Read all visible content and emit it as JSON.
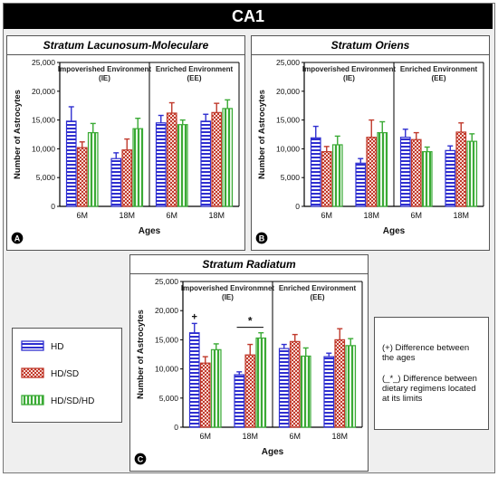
{
  "figure": {
    "title": "CA1",
    "colors": {
      "hd": "#2f2fd0",
      "hdsd": "#c0392b",
      "hdsdhd": "#3aaa35",
      "badge_bg": "#000000"
    },
    "legend": [
      {
        "key": "hd",
        "label": "HD",
        "pattern": "horizontal-stripes"
      },
      {
        "key": "hdsd",
        "label": "HD/SD",
        "pattern": "checkerboard"
      },
      {
        "key": "hdsdhd",
        "label": "HD/SD/HD",
        "pattern": "vertical-stripes"
      }
    ],
    "notes": {
      "line1_symbol": "(+)",
      "line1_text": "Difference between",
      "line2_text": "the ages",
      "line3_symbol": "(_*_)",
      "line3_text": "Difference between",
      "line4_text": "dietary regimens located",
      "line5_text": "at its limits"
    }
  },
  "chart_data": [
    {
      "type": "bar",
      "panel_label": "A",
      "title": "Stratum Lacunosum-Moleculare",
      "group_labels": [
        "Impoverished Environment (IE)",
        "Enriched Environment (EE)"
      ],
      "categories": [
        "6M",
        "18M",
        "6M",
        "18M"
      ],
      "xlabel": "Ages",
      "ylabel": "Number of Astrocytes",
      "ylim": [
        0,
        25000
      ],
      "yticks": [
        "0",
        "5,000",
        "10,000",
        "15,000",
        "20,000",
        "25,000"
      ],
      "series": [
        {
          "name": "HD",
          "values": [
            14800,
            8300,
            14500,
            14800
          ],
          "errors": [
            2500,
            1000,
            1300,
            1200
          ]
        },
        {
          "name": "HD/SD",
          "values": [
            10200,
            9800,
            16200,
            16300
          ],
          "errors": [
            1000,
            1900,
            1800,
            1600
          ]
        },
        {
          "name": "HD/SD/HD",
          "values": [
            12800,
            13500,
            14200,
            17000
          ],
          "errors": [
            1600,
            1800,
            800,
            1500
          ]
        }
      ]
    },
    {
      "type": "bar",
      "panel_label": "B",
      "title": "Stratum Oriens",
      "group_labels": [
        "Impoverished Environment (IE)",
        "Enriched Environment (EE)"
      ],
      "categories": [
        "6M",
        "18M",
        "6M",
        "18M"
      ],
      "xlabel": "Ages",
      "ylabel": "Number of Astrocytes",
      "ylim": [
        0,
        25000
      ],
      "yticks": [
        "0",
        "5,000",
        "10,000",
        "15,000",
        "20,000",
        "25,000"
      ],
      "series": [
        {
          "name": "HD",
          "values": [
            11900,
            7500,
            12000,
            9700
          ],
          "errors": [
            2000,
            800,
            1400,
            800
          ]
        },
        {
          "name": "HD/SD",
          "values": [
            9500,
            12000,
            11600,
            12900
          ],
          "errors": [
            900,
            3000,
            1200,
            1600
          ]
        },
        {
          "name": "HD/SD/HD",
          "values": [
            10700,
            12800,
            9500,
            11300
          ],
          "errors": [
            1500,
            1900,
            800,
            1300
          ]
        }
      ]
    },
    {
      "type": "bar",
      "panel_label": "C",
      "title": "Stratum Radiatum",
      "group_labels": [
        "Impoverished Environmnet (IE)",
        "Enriched Environment (EE)"
      ],
      "categories": [
        "6M",
        "18M",
        "6M",
        "18M"
      ],
      "xlabel": "Ages",
      "ylabel": "Number of Astrocytes",
      "ylim": [
        0,
        25000
      ],
      "yticks": [
        "0",
        "5,000",
        "10,000",
        "15,000",
        "20,000",
        "25,000"
      ],
      "annotations": {
        "plus": "+",
        "star": "*"
      },
      "series": [
        {
          "name": "HD",
          "values": [
            16200,
            9000,
            13500,
            12100
          ],
          "errors": [
            1600,
            500,
            700,
            600
          ]
        },
        {
          "name": "HD/SD",
          "values": [
            11000,
            12400,
            14700,
            15000
          ],
          "errors": [
            1100,
            1800,
            1200,
            1900
          ]
        },
        {
          "name": "HD/SD/HD",
          "values": [
            13300,
            15300,
            12200,
            14000
          ],
          "errors": [
            1000,
            900,
            1400,
            1200
          ]
        }
      ]
    }
  ]
}
